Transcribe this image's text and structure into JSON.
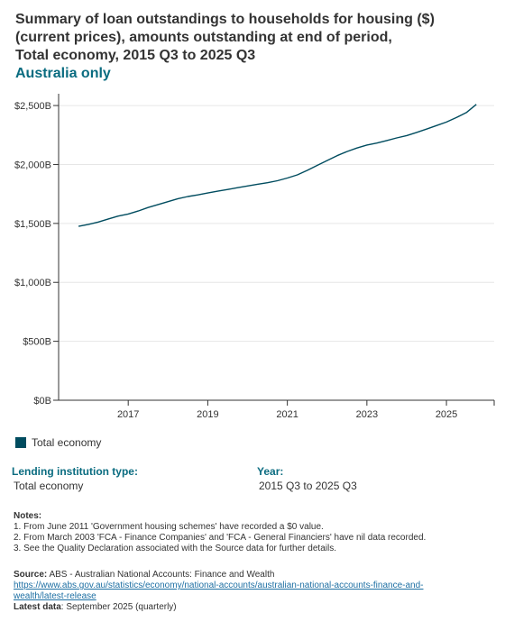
{
  "title_lines": [
    "Summary of loan outstandings to households for housing ($)",
    "(current prices), amounts outstanding at end of period,",
    "Total economy, 2015 Q3 to 2025 Q3"
  ],
  "subtitle": "Australia only",
  "legend": {
    "label": "Total economy"
  },
  "filters": {
    "lending": {
      "label": "Lending institution type:",
      "value": "Total economy"
    },
    "year": {
      "label": "Year:",
      "value": "2015 Q3 to 2025 Q3"
    }
  },
  "notes": {
    "heading": "Notes:",
    "items": [
      "1. From June 2011 'Government housing schemes' have recorded a $0 value.",
      "2. From March 2003 'FCA - Finance Companies' and 'FCA - General Financiers' have nil data recorded.",
      "3. See the Quality Declaration associated with the Source data for further details."
    ]
  },
  "source": {
    "label": "Source:",
    "text": "ABS - Australian National Accounts: Finance and Wealth",
    "link_line1": "https://www.abs.gov.au/statistics/economy/national-accounts/australian-national-accounts-finance-and-",
    "link_line2": "wealth/latest-release",
    "latest_label": "Latest data",
    "latest_text": ": September 2025 (quarterly)"
  },
  "colors": {
    "series": "#004c5f",
    "accent": "#0a6c80",
    "grid": "#e6e6e6",
    "axis": "#333333"
  },
  "chart_data": {
    "type": "line",
    "ylim": [
      0,
      2600
    ],
    "y_ticks": [
      0,
      500,
      1000,
      1500,
      2000,
      2500
    ],
    "y_tick_labels": [
      "$0B",
      "$500B",
      "$1,000B",
      "$1,500B",
      "$2,000B",
      "$2,500B"
    ],
    "x_ticks": [
      2017,
      2019,
      2021,
      2023,
      2025
    ],
    "x_tick_labels": [
      "2017",
      "2019",
      "2021",
      "2023",
      "2025"
    ],
    "grid": "horizontal",
    "series": [
      {
        "name": "Total economy",
        "x": [
          "2015 Q3",
          "2015 Q4",
          "2016 Q1",
          "2016 Q2",
          "2016 Q3",
          "2016 Q4",
          "2017 Q1",
          "2017 Q2",
          "2017 Q3",
          "2017 Q4",
          "2018 Q1",
          "2018 Q2",
          "2018 Q3",
          "2018 Q4",
          "2019 Q1",
          "2019 Q2",
          "2019 Q3",
          "2019 Q4",
          "2020 Q1",
          "2020 Q2",
          "2020 Q3",
          "2020 Q4",
          "2021 Q1",
          "2021 Q2",
          "2021 Q3",
          "2021 Q4",
          "2022 Q1",
          "2022 Q2",
          "2022 Q3",
          "2022 Q4",
          "2023 Q1",
          "2023 Q2",
          "2023 Q3",
          "2023 Q4",
          "2024 Q1",
          "2024 Q2",
          "2024 Q3",
          "2024 Q4",
          "2025 Q1",
          "2025 Q2",
          "2025 Q3"
        ],
        "values": [
          1475,
          1492,
          1512,
          1538,
          1562,
          1580,
          1605,
          1635,
          1660,
          1685,
          1710,
          1728,
          1742,
          1758,
          1773,
          1788,
          1803,
          1818,
          1832,
          1845,
          1862,
          1885,
          1912,
          1950,
          1992,
          2033,
          2075,
          2110,
          2140,
          2165,
          2182,
          2203,
          2225,
          2245,
          2272,
          2300,
          2330,
          2360,
          2398,
          2440,
          2510
        ]
      }
    ]
  }
}
